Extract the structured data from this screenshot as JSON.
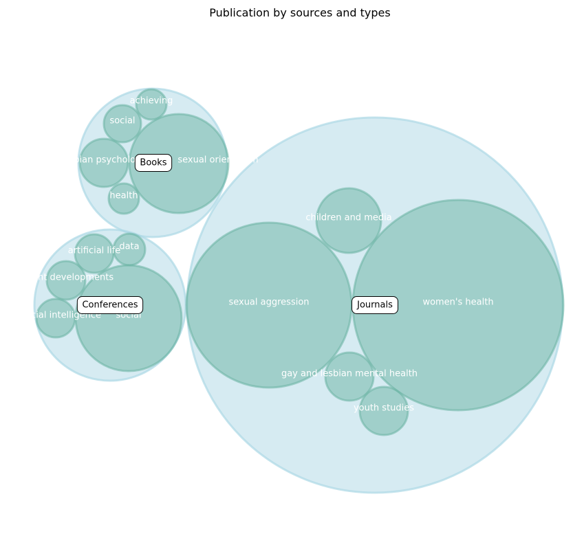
{
  "chart_data": {
    "type": "packed-bubble",
    "title": "Publication by sources and types",
    "colors": {
      "parent_fill": "#add8e6",
      "parent_stroke": "#add8e6",
      "child_fill": "#69b3a2",
      "child_stroke": "#69b3a2",
      "label_box_fill": "#ffffff",
      "label_box_stroke": "#000000"
    },
    "groups": [
      {
        "name": "Books",
        "children": [
          {
            "name": "achieving"
          },
          {
            "name": "social"
          },
          {
            "name": "lesbian psychology"
          },
          {
            "name": "sexual orientation"
          },
          {
            "name": "health"
          }
        ]
      },
      {
        "name": "Conferences",
        "children": [
          {
            "name": "data"
          },
          {
            "name": "artificial life"
          },
          {
            "name": "recent developments"
          },
          {
            "name": "artificial intelligence"
          },
          {
            "name": "social"
          }
        ]
      },
      {
        "name": "Journals",
        "children": [
          {
            "name": "children and media"
          },
          {
            "name": "sexual aggression"
          },
          {
            "name": "women's health"
          },
          {
            "name": "gay and lesbian mental health"
          },
          {
            "name": "youth studies"
          }
        ]
      }
    ]
  }
}
